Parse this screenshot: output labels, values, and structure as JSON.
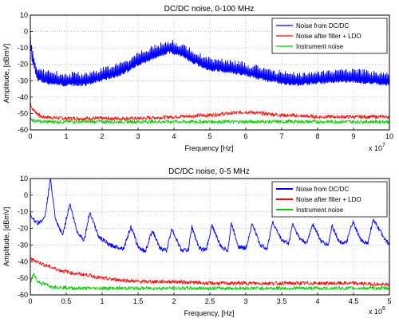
{
  "chart_data": [
    {
      "type": "line",
      "title": "DC/DC noise, 0-100 MHz",
      "xlabel": "Frequency [Hz]",
      "ylabel": "Amplitude, [dBmV]",
      "x_exponent_label": "x 10",
      "x_exponent": "7",
      "xlim": [
        0,
        10
      ],
      "ylim": [
        -60,
        10
      ],
      "xticks": [
        "0",
        "1",
        "2",
        "3",
        "4",
        "5",
        "6",
        "7",
        "8",
        "9",
        "10"
      ],
      "yticks": [
        "-60",
        "-50",
        "-40",
        "-30",
        "-20",
        "-10",
        "0",
        "10"
      ],
      "grid": true,
      "legend_position": "top-right",
      "series": [
        {
          "name": "Noise from DC/DC",
          "color": "#0000ff",
          "x": [
            0,
            0.05,
            0.2,
            0.5,
            1.0,
            1.5,
            2.0,
            2.5,
            3.0,
            3.5,
            3.9,
            4.2,
            4.5,
            5.0,
            5.5,
            6.0,
            6.5,
            7.0,
            7.5,
            8.0,
            8.5,
            9.0,
            9.5,
            10
          ],
          "values": [
            -5,
            -15,
            -27,
            -29,
            -30,
            -30,
            -27,
            -24,
            -18,
            -13,
            -10,
            -12,
            -16,
            -21,
            -22,
            -24,
            -27,
            -29,
            -30,
            -29,
            -28,
            -28,
            -29,
            -30
          ]
        },
        {
          "name": "Noise after filter + LDO",
          "color": "#ff0000",
          "x": [
            0,
            0.05,
            0.3,
            1.0,
            2.0,
            3.0,
            4.0,
            5.0,
            5.5,
            6.0,
            7.0,
            8.0,
            9.0,
            10
          ],
          "values": [
            -43,
            -47,
            -52,
            -53,
            -53,
            -53,
            -52,
            -51,
            -50,
            -49,
            -51,
            -52,
            -52,
            -52
          ]
        },
        {
          "name": "Instrument noise",
          "color": "#00cc00",
          "x": [
            0,
            0.05,
            0.3,
            1.0,
            2.0,
            3.0,
            4.0,
            5.0,
            6.0,
            7.0,
            8.0,
            9.0,
            10
          ],
          "values": [
            -52,
            -54,
            -55,
            -55,
            -55,
            -55,
            -55,
            -55,
            -55,
            -55,
            -55,
            -55,
            -55
          ]
        }
      ]
    },
    {
      "type": "line",
      "title": "DC/DC noise, 0-5 MHz",
      "xlabel": "Frequency, [Hz]",
      "ylabel": "Amplitude, [dBmV]",
      "x_exponent_label": "x 10",
      "x_exponent": "6",
      "xlim": [
        0,
        5
      ],
      "ylim": [
        -60,
        10
      ],
      "xticks": [
        "0",
        "0.5",
        "1",
        "1.5",
        "2",
        "2.5",
        "3",
        "3.5",
        "4",
        "4.5",
        "5"
      ],
      "yticks": [
        "-60",
        "-50",
        "-40",
        "-30",
        "-20",
        "-10",
        "0",
        "10"
      ],
      "grid": true,
      "legend_position": "top-right",
      "series": [
        {
          "name": "Noise from DC/DC",
          "color": "#0000ff",
          "x": [
            0,
            0.1,
            0.2,
            0.28,
            0.35,
            0.45,
            0.55,
            0.65,
            0.75,
            0.83,
            0.95,
            1.1,
            1.2,
            1.3,
            1.4,
            1.5,
            1.6,
            1.7,
            1.8,
            1.9,
            1.97,
            2.1,
            2.2,
            2.25,
            2.35,
            2.45,
            2.53,
            2.65,
            2.75,
            2.8,
            2.9,
            3.0,
            3.09,
            3.2,
            3.3,
            3.37,
            3.5,
            3.6,
            3.65,
            3.75,
            3.85,
            3.93,
            4.05,
            4.15,
            4.2,
            4.3,
            4.4,
            4.49,
            4.6,
            4.7,
            4.77,
            4.85,
            4.95,
            5.0
          ],
          "values": [
            -12,
            -17,
            -14,
            10,
            -15,
            -24,
            -5,
            -22,
            -27,
            -10,
            -25,
            -30,
            -31,
            -32,
            -19,
            -31,
            -34,
            -21,
            -32,
            -33,
            -20,
            -33,
            -33,
            -19,
            -32,
            -33,
            -18,
            -31,
            -33,
            -17,
            -31,
            -32,
            -17,
            -30,
            -32,
            -16,
            -27,
            -29,
            -17,
            -26,
            -29,
            -17,
            -28,
            -30,
            -18,
            -28,
            -29,
            -16,
            -27,
            -29,
            -15,
            -20,
            -27,
            -30
          ]
        },
        {
          "name": "Noise after filter + LDO",
          "color": "#ff0000",
          "x": [
            0,
            0.1,
            0.2,
            0.4,
            0.6,
            0.8,
            1.0,
            1.5,
            2.0,
            2.5,
            3.0,
            3.5,
            4.0,
            4.5,
            5.0
          ],
          "values": [
            -38,
            -40,
            -42,
            -45,
            -47,
            -48,
            -50,
            -52,
            -52,
            -53,
            -53,
            -53,
            -53,
            -53,
            -54
          ]
        },
        {
          "name": "Instrument noise",
          "color": "#00cc00",
          "x": [
            0,
            0.05,
            0.1,
            0.3,
            0.6,
            1.0,
            1.5,
            2.0,
            2.5,
            3.0,
            3.5,
            4.0,
            4.5,
            5.0
          ],
          "values": [
            -53,
            -47,
            -52,
            -55,
            -56,
            -56,
            -56,
            -56,
            -56,
            -56,
            -56,
            -56,
            -56,
            -56
          ]
        }
      ]
    }
  ]
}
